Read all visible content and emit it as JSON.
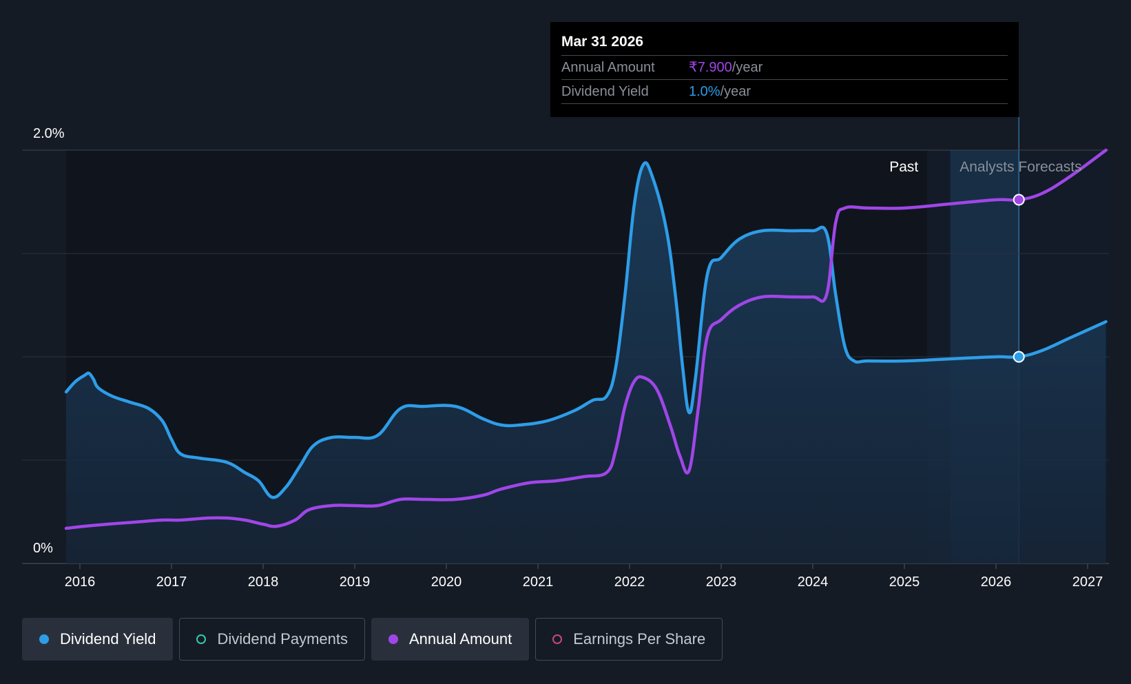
{
  "chart_data": {
    "type": "line",
    "title": "",
    "xlabel": "",
    "ylabel": "",
    "ylim": [
      0,
      2.0
    ],
    "y_ticks": [
      "0%",
      "2.0%"
    ],
    "x_ticks": [
      "2016",
      "2017",
      "2018",
      "2019",
      "2020",
      "2021",
      "2022",
      "2023",
      "2024",
      "2025",
      "2026",
      "2027"
    ],
    "grid": true,
    "region_labels": {
      "past": "Past",
      "forecast": "Analysts Forecasts"
    },
    "series": [
      {
        "name": "Dividend Yield",
        "color": "#2e9de8",
        "fill": true,
        "unit": "%",
        "points": [
          [
            2015.85,
            0.83
          ],
          [
            2015.95,
            0.88
          ],
          [
            2016.05,
            0.91
          ],
          [
            2016.1,
            0.92
          ],
          [
            2016.15,
            0.89
          ],
          [
            2016.2,
            0.85
          ],
          [
            2016.35,
            0.81
          ],
          [
            2016.55,
            0.78
          ],
          [
            2016.75,
            0.75
          ],
          [
            2016.9,
            0.69
          ],
          [
            2017.0,
            0.6
          ],
          [
            2017.1,
            0.53
          ],
          [
            2017.3,
            0.51
          ],
          [
            2017.6,
            0.49
          ],
          [
            2017.8,
            0.44
          ],
          [
            2017.95,
            0.4
          ],
          [
            2018.1,
            0.32
          ],
          [
            2018.25,
            0.37
          ],
          [
            2018.4,
            0.47
          ],
          [
            2018.55,
            0.57
          ],
          [
            2018.75,
            0.61
          ],
          [
            2019.0,
            0.61
          ],
          [
            2019.25,
            0.62
          ],
          [
            2019.5,
            0.75
          ],
          [
            2019.75,
            0.76
          ],
          [
            2020.1,
            0.76
          ],
          [
            2020.4,
            0.7
          ],
          [
            2020.6,
            0.67
          ],
          [
            2020.8,
            0.67
          ],
          [
            2021.1,
            0.69
          ],
          [
            2021.4,
            0.74
          ],
          [
            2021.6,
            0.79
          ],
          [
            2021.75,
            0.81
          ],
          [
            2021.85,
            0.95
          ],
          [
            2021.95,
            1.3
          ],
          [
            2022.05,
            1.73
          ],
          [
            2022.15,
            1.93
          ],
          [
            2022.25,
            1.87
          ],
          [
            2022.4,
            1.62
          ],
          [
            2022.5,
            1.3
          ],
          [
            2022.58,
            0.95
          ],
          [
            2022.65,
            0.73
          ],
          [
            2022.72,
            0.9
          ],
          [
            2022.85,
            1.4
          ],
          [
            2023.0,
            1.48
          ],
          [
            2023.2,
            1.57
          ],
          [
            2023.45,
            1.61
          ],
          [
            2023.75,
            1.61
          ],
          [
            2024.0,
            1.61
          ],
          [
            2024.15,
            1.6
          ],
          [
            2024.25,
            1.3
          ],
          [
            2024.35,
            1.05
          ],
          [
            2024.45,
            0.98
          ],
          [
            2024.6,
            0.98
          ],
          [
            2025.0,
            0.98
          ],
          [
            2025.5,
            0.99
          ],
          [
            2026.0,
            1.0
          ],
          [
            2026.25,
            1.0
          ],
          [
            2026.5,
            1.03
          ],
          [
            2026.8,
            1.09
          ],
          [
            2027.2,
            1.17
          ]
        ]
      },
      {
        "name": "Annual Amount",
        "color": "#a046e8",
        "fill": false,
        "unit": "₹",
        "points": [
          [
            2015.85,
            0.17
          ],
          [
            2016.05,
            0.18
          ],
          [
            2016.3,
            0.19
          ],
          [
            2016.6,
            0.2
          ],
          [
            2016.9,
            0.21
          ],
          [
            2017.1,
            0.21
          ],
          [
            2017.4,
            0.22
          ],
          [
            2017.6,
            0.22
          ],
          [
            2017.8,
            0.21
          ],
          [
            2018.0,
            0.19
          ],
          [
            2018.15,
            0.18
          ],
          [
            2018.35,
            0.21
          ],
          [
            2018.5,
            0.26
          ],
          [
            2018.75,
            0.28
          ],
          [
            2019.0,
            0.28
          ],
          [
            2019.25,
            0.28
          ],
          [
            2019.5,
            0.31
          ],
          [
            2019.75,
            0.31
          ],
          [
            2020.1,
            0.31
          ],
          [
            2020.4,
            0.33
          ],
          [
            2020.6,
            0.36
          ],
          [
            2020.9,
            0.39
          ],
          [
            2021.2,
            0.4
          ],
          [
            2021.5,
            0.42
          ],
          [
            2021.75,
            0.44
          ],
          [
            2021.85,
            0.55
          ],
          [
            2021.95,
            0.76
          ],
          [
            2022.05,
            0.88
          ],
          [
            2022.15,
            0.9
          ],
          [
            2022.3,
            0.84
          ],
          [
            2022.45,
            0.66
          ],
          [
            2022.55,
            0.52
          ],
          [
            2022.65,
            0.45
          ],
          [
            2022.75,
            0.75
          ],
          [
            2022.85,
            1.1
          ],
          [
            2023.0,
            1.18
          ],
          [
            2023.2,
            1.25
          ],
          [
            2023.45,
            1.29
          ],
          [
            2023.75,
            1.29
          ],
          [
            2024.0,
            1.29
          ],
          [
            2024.15,
            1.3
          ],
          [
            2024.25,
            1.65
          ],
          [
            2024.35,
            1.72
          ],
          [
            2024.6,
            1.72
          ],
          [
            2025.0,
            1.72
          ],
          [
            2025.5,
            1.74
          ],
          [
            2026.0,
            1.76
          ],
          [
            2026.25,
            1.76
          ],
          [
            2026.5,
            1.79
          ],
          [
            2026.8,
            1.87
          ],
          [
            2027.2,
            2.0
          ]
        ]
      }
    ],
    "markers": [
      {
        "series": "Dividend Yield",
        "x": 2026.25,
        "y": 1.0
      },
      {
        "series": "Annual Amount",
        "x": 2026.25,
        "y": 1.76
      }
    ]
  },
  "tooltip": {
    "date": "Mar 31 2026",
    "annual_label": "Annual Amount",
    "annual_value": "₹7.900",
    "annual_unit": "/year",
    "yield_label": "Dividend Yield",
    "yield_value": "1.0%",
    "yield_unit": "/year",
    "annual_color": "#a046e8",
    "yield_color": "#2e9de8"
  },
  "legend": [
    {
      "label": "Dividend Yield",
      "color": "#2e9de8",
      "active": true,
      "filled": true
    },
    {
      "label": "Dividend Payments",
      "color": "#35c9b0",
      "active": false,
      "filled": false
    },
    {
      "label": "Annual Amount",
      "color": "#a046e8",
      "active": true,
      "filled": true
    },
    {
      "label": "Earnings Per Share",
      "color": "#c7497a",
      "active": false,
      "filled": false
    }
  ]
}
